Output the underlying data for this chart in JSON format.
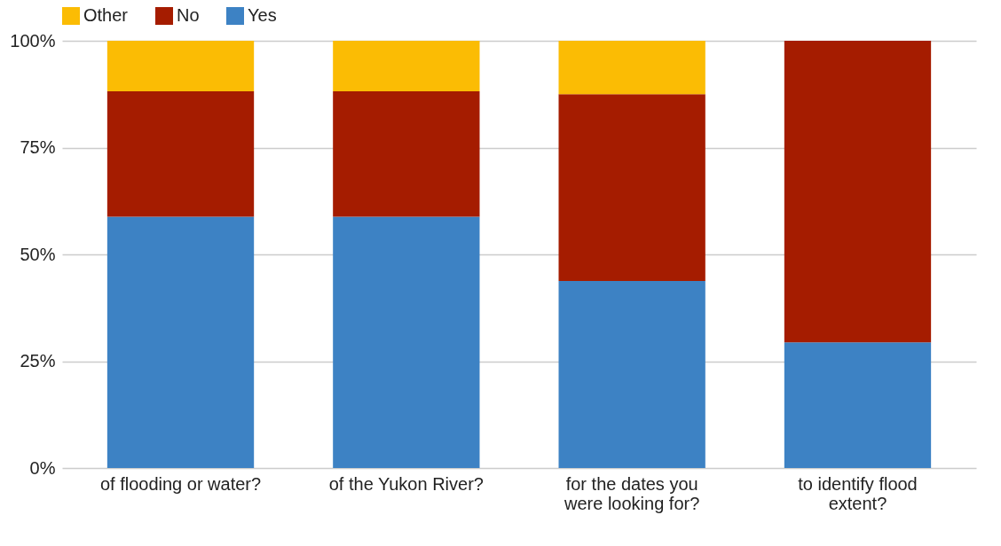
{
  "chart_data": {
    "type": "bar",
    "stacked": true,
    "categories": [
      "of flooding or water?",
      "of the Yukon River?",
      "for the dates you were looking for?",
      "to identify flood extent?"
    ],
    "series": [
      {
        "name": "Yes",
        "color": "#3d82c4",
        "values": [
          58.8,
          58.8,
          43.8,
          29.4
        ]
      },
      {
        "name": "No",
        "color": "#a51c00",
        "values": [
          29.4,
          29.4,
          43.7,
          70.6
        ]
      },
      {
        "name": "Other",
        "color": "#fbbc04",
        "values": [
          11.8,
          11.8,
          12.5,
          null
        ]
      }
    ],
    "ylim": [
      0,
      100
    ],
    "yticks": [
      {
        "value": 0,
        "label": "0%"
      },
      {
        "value": 25,
        "label": "25%"
      },
      {
        "value": 50,
        "label": "50%"
      },
      {
        "value": 75,
        "label": "75%"
      },
      {
        "value": 100,
        "label": "100%"
      }
    ],
    "grid": "y",
    "legend": "top"
  }
}
